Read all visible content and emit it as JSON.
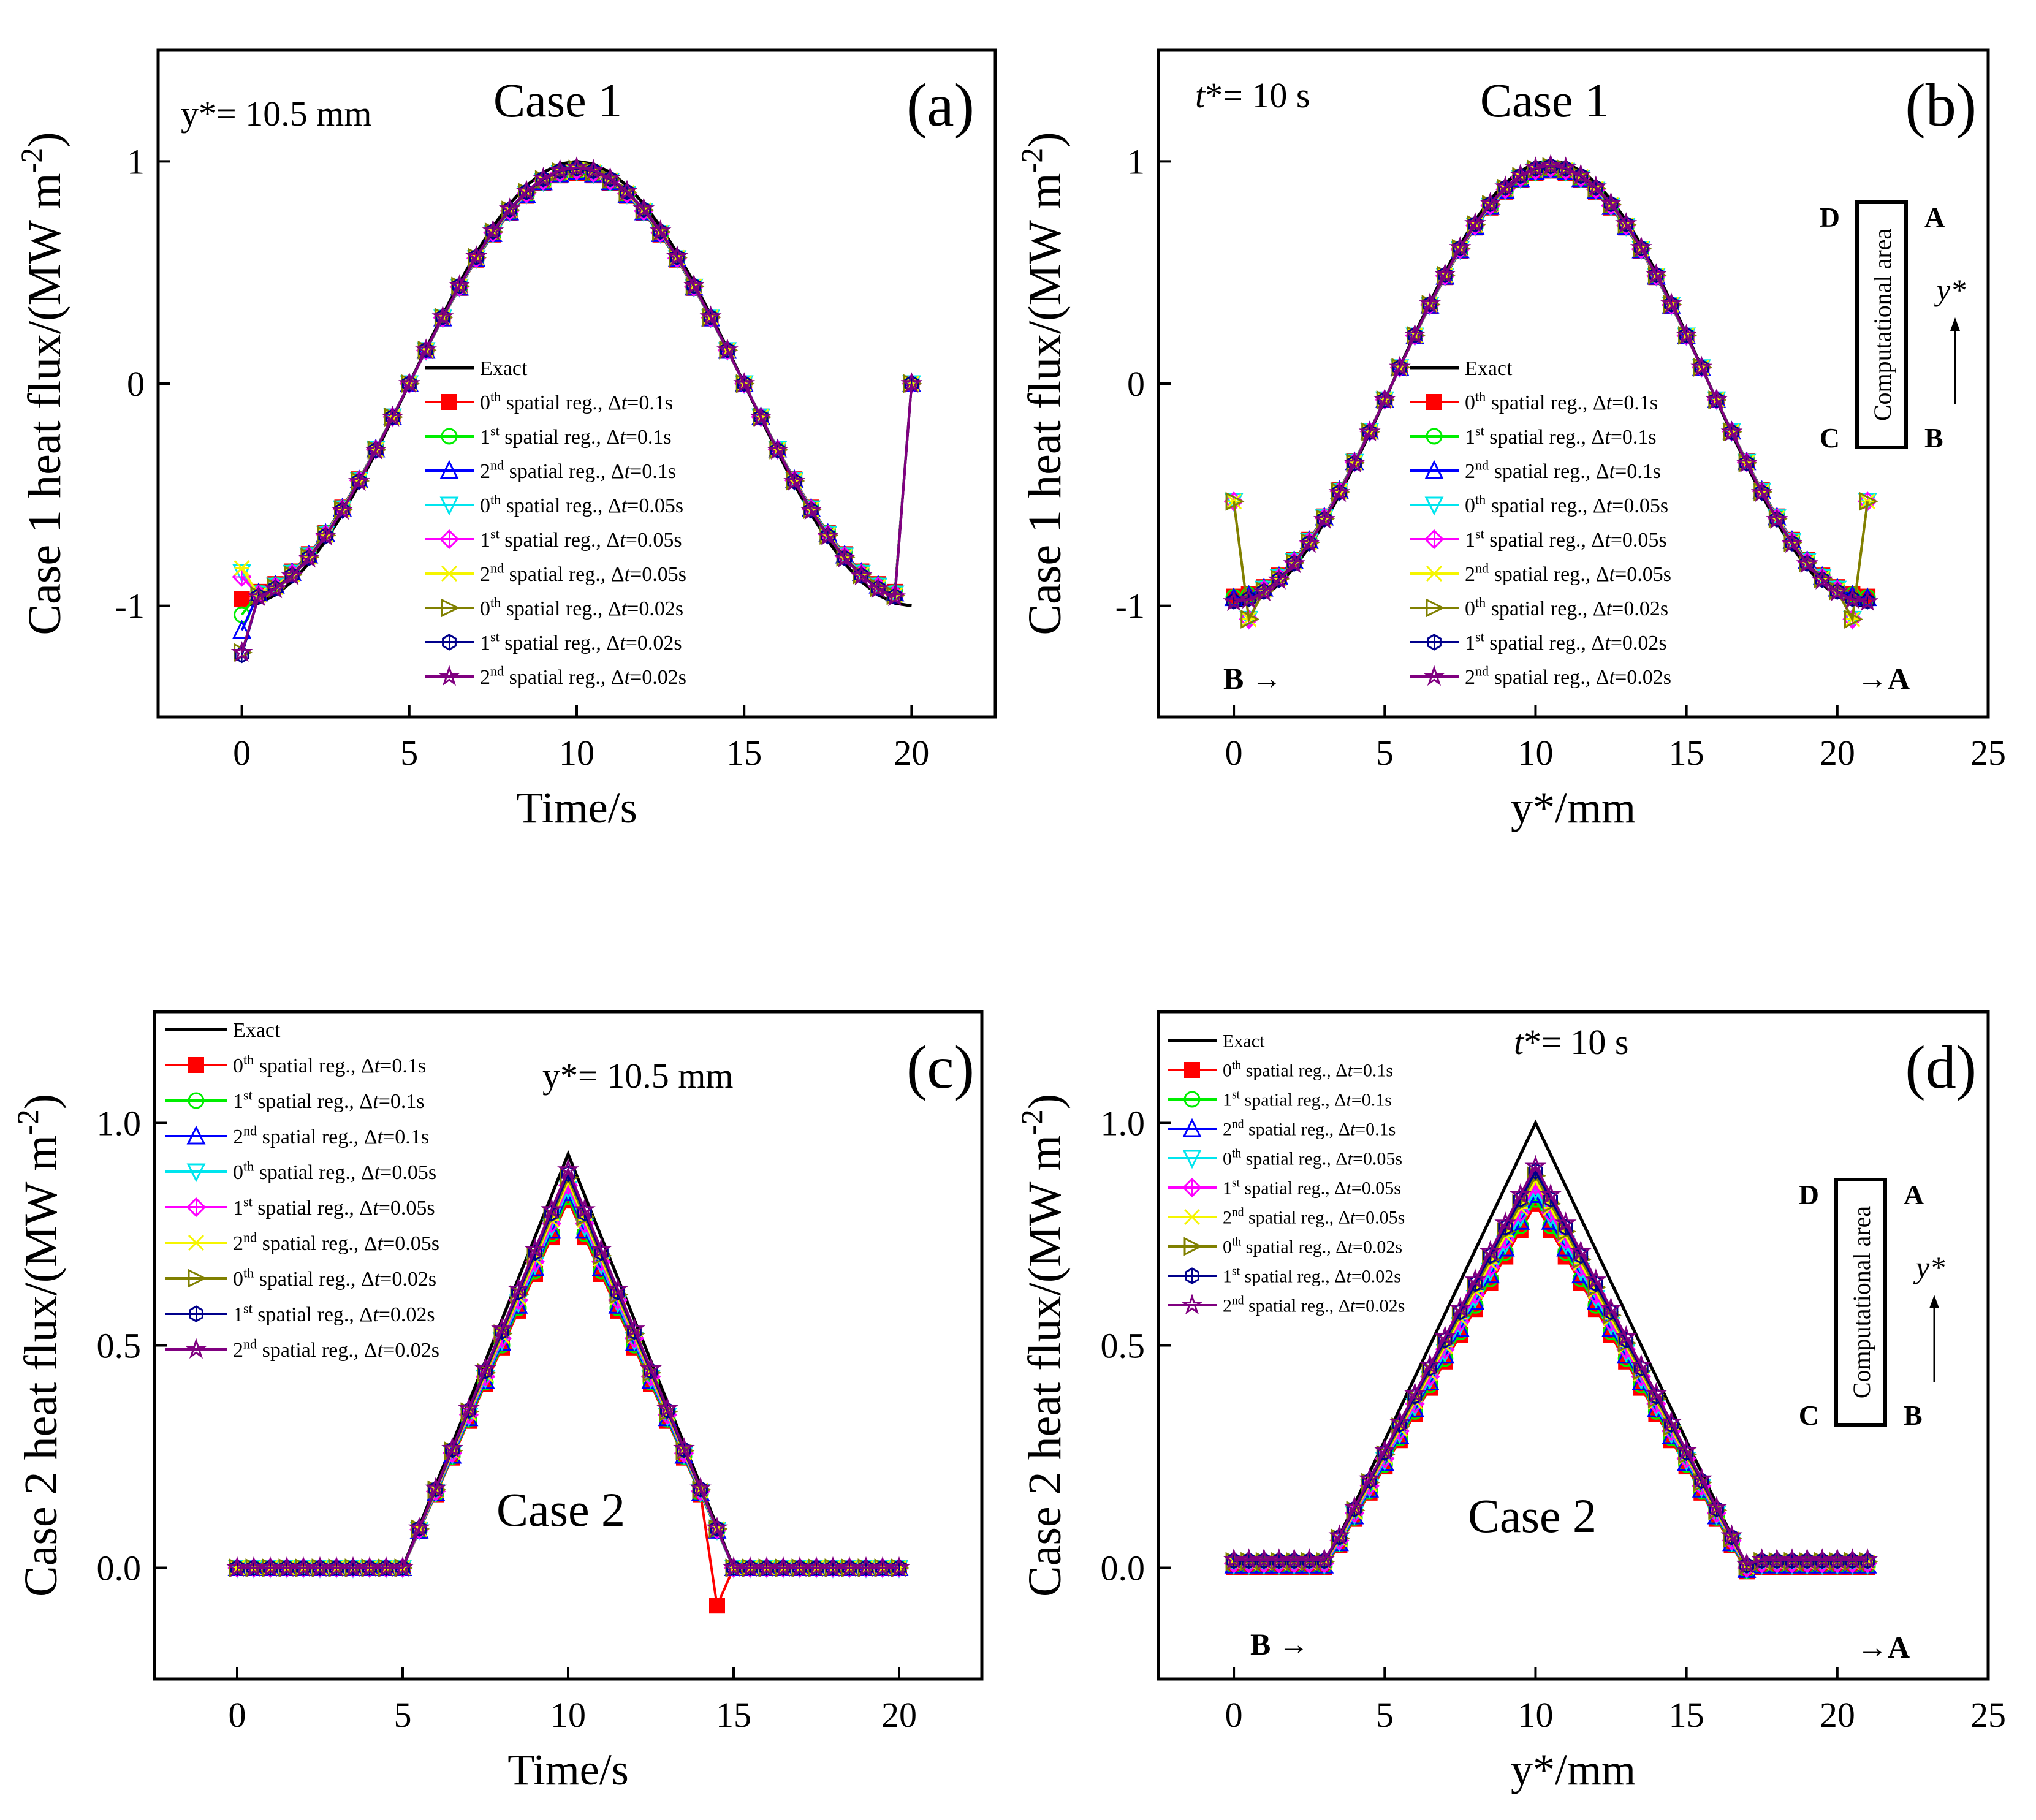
{
  "figure": {
    "legend_labels": [
      {
        "pre": "",
        "sup": "",
        "mid": "Exact",
        "post": ""
      },
      {
        "pre": "0",
        "sup": "th",
        "mid": " spatial reg., Δ",
        "post": "=0.1s"
      },
      {
        "pre": "1",
        "sup": "st",
        "mid": " spatial reg., Δ",
        "post": "=0.1s"
      },
      {
        "pre": "2",
        "sup": "nd",
        "mid": " spatial reg., Δ",
        "post": "=0.1s"
      },
      {
        "pre": "0",
        "sup": "th",
        "mid": " spatial reg., Δ",
        "post": "=0.05s"
      },
      {
        "pre": "1",
        "sup": "st",
        "mid": " spatial reg., Δ",
        "post": "=0.05s"
      },
      {
        "pre": "2",
        "sup": "nd",
        "mid": " spatial reg., Δ",
        "post": "=0.05s"
      },
      {
        "pre": "0",
        "sup": "th",
        "mid": " spatial reg., Δ",
        "post": "=0.02s"
      },
      {
        "pre": "1",
        "sup": "st",
        "mid": " spatial reg., Δ",
        "post": "=0.02s"
      },
      {
        "pre": "2",
        "sup": "nd",
        "mid": " spatial reg., Δ",
        "post": "=0.02s"
      }
    ],
    "legend_t_symbol": "t",
    "series_style": [
      {
        "name": "Exact",
        "color": "#000000",
        "marker": "none"
      },
      {
        "name": "0th Δt=0.1s",
        "color": "#ff0000",
        "marker": "square"
      },
      {
        "name": "1st Δt=0.1s",
        "color": "#00ee00",
        "marker": "circle"
      },
      {
        "name": "2nd Δt=0.1s",
        "color": "#0000ff",
        "marker": "triangle-up"
      },
      {
        "name": "0th Δt=0.05s",
        "color": "#00e5ee",
        "marker": "triangle-down"
      },
      {
        "name": "1st Δt=0.05s",
        "color": "#ff00ff",
        "marker": "diamond"
      },
      {
        "name": "2nd Δt=0.05s",
        "color": "#f5f500",
        "marker": "x"
      },
      {
        "name": "0th Δt=0.02s",
        "color": "#808000",
        "marker": "triangle-right"
      },
      {
        "name": "1st Δt=0.02s",
        "color": "#00008b",
        "marker": "hexagon"
      },
      {
        "name": "2nd Δt=0.02s",
        "color": "#800080",
        "marker": "star"
      }
    ],
    "diagram": {
      "D": "D",
      "A": "A",
      "B": "B",
      "C": "C",
      "area": "Computational area",
      "axis": "y*"
    }
  },
  "chart_data": [
    {
      "id": "a",
      "type": "line",
      "panel_label": "(a)",
      "title": "Case 1",
      "annotation": "y*= 10.5 mm",
      "xlabel": "Time/s",
      "ylabel": "Case 1 heat flux/(MW m-2)",
      "xlim": [
        -2.5,
        22.5
      ],
      "ylim": [
        -1.5,
        1.5
      ],
      "xticks": [
        0,
        5,
        10,
        15,
        20
      ],
      "yticks": [
        -1,
        0,
        1
      ],
      "x": [
        0,
        0.5,
        1,
        1.5,
        2,
        2.5,
        3,
        3.5,
        4,
        4.5,
        5,
        5.5,
        6,
        6.5,
        7,
        7.5,
        8,
        8.5,
        9,
        9.5,
        10,
        10.5,
        11,
        11.5,
        12,
        12.5,
        13,
        13.5,
        14,
        14.5,
        15,
        15.5,
        16,
        16.5,
        17,
        17.5,
        18,
        18.5,
        19,
        19.5,
        20
      ],
      "exact": [
        -1.0,
        -0.988,
        -0.951,
        -0.891,
        -0.809,
        -0.707,
        -0.588,
        -0.454,
        -0.309,
        -0.156,
        0.0,
        0.156,
        0.309,
        0.454,
        0.588,
        0.707,
        0.809,
        0.891,
        0.951,
        0.988,
        1.0,
        0.988,
        0.951,
        0.891,
        0.809,
        0.707,
        0.588,
        0.454,
        0.309,
        0.156,
        0.0,
        -0.156,
        -0.309,
        -0.454,
        -0.588,
        -0.707,
        -0.809,
        -0.891,
        -0.951,
        -0.988,
        -1.0
      ],
      "scale": 0.96,
      "first_points": [
        -0.97,
        -1.04,
        -1.11,
        -0.85,
        -0.87,
        -0.83,
        -1.21,
        -1.22,
        -1.21
      ],
      "last_value": 0.0
    },
    {
      "id": "b",
      "type": "line",
      "panel_label": "(b)",
      "title": "Case 1",
      "annotation": "t*= 10 s",
      "xlabel": "y*/mm",
      "ylabel": "Case 1 heat flux/(MW m-2)",
      "xlim": [
        -2.5,
        25
      ],
      "ylim": [
        -1.5,
        1.5
      ],
      "xticks": [
        0,
        5,
        10,
        15,
        20,
        25
      ],
      "yticks": [
        -1,
        0,
        1
      ],
      "y_positions": [
        0,
        0.5,
        1,
        1.5,
        2,
        2.5,
        3,
        3.5,
        4,
        4.5,
        5,
        5.5,
        6,
        6.5,
        7,
        7.5,
        8,
        8.5,
        9,
        9.5,
        10,
        10.5,
        11,
        11.5,
        12,
        12.5,
        13,
        13.5,
        14,
        14.5,
        15,
        15.5,
        16,
        16.5,
        17,
        17.5,
        18,
        18.5,
        19,
        19.5,
        20,
        20.5,
        21
      ],
      "exact_formula": "-cos(pi*y/10.5)",
      "scale": 0.97,
      "edge_value": -0.53,
      "edge_dip": -1.06,
      "arrow_left": "B →",
      "arrow_right": "→A"
    },
    {
      "id": "c",
      "type": "line",
      "panel_label": "(c)",
      "title": "Case 2",
      "annotation": "y*= 10.5 mm",
      "xlabel": "Time/s",
      "ylabel": "Case 2 heat flux/(MW m-2)",
      "xlim": [
        -2.5,
        22.5
      ],
      "ylim": [
        -0.25,
        1.25
      ],
      "xticks": [
        0,
        5,
        10,
        15,
        20
      ],
      "yticks": [
        0.0,
        0.5,
        1.0
      ],
      "exact_points": [
        [
          0,
          0
        ],
        [
          5,
          0
        ],
        [
          10,
          0.93
        ],
        [
          15,
          0
        ],
        [
          20,
          0
        ]
      ],
      "peak_estimate": 0.86,
      "red_dip": {
        "x": 14.5,
        "y": -0.085
      }
    },
    {
      "id": "d",
      "type": "line",
      "panel_label": "(d)",
      "title": "Case 2",
      "annotation": "t*= 10 s",
      "xlabel": "y*/mm",
      "ylabel": "Case 2 heat flux/(MW m-2)",
      "xlim": [
        -2.5,
        25
      ],
      "ylim": [
        -0.25,
        1.25
      ],
      "xticks": [
        0,
        5,
        10,
        15,
        20,
        25
      ],
      "yticks": [
        0.0,
        0.5,
        1.0
      ],
      "exact_points": [
        [
          0,
          0
        ],
        [
          3,
          0
        ],
        [
          10,
          1.0
        ],
        [
          17,
          0
        ],
        [
          21,
          0
        ]
      ],
      "peak_estimate": 0.86,
      "arrow_left": "B →",
      "arrow_right": "→A"
    }
  ]
}
